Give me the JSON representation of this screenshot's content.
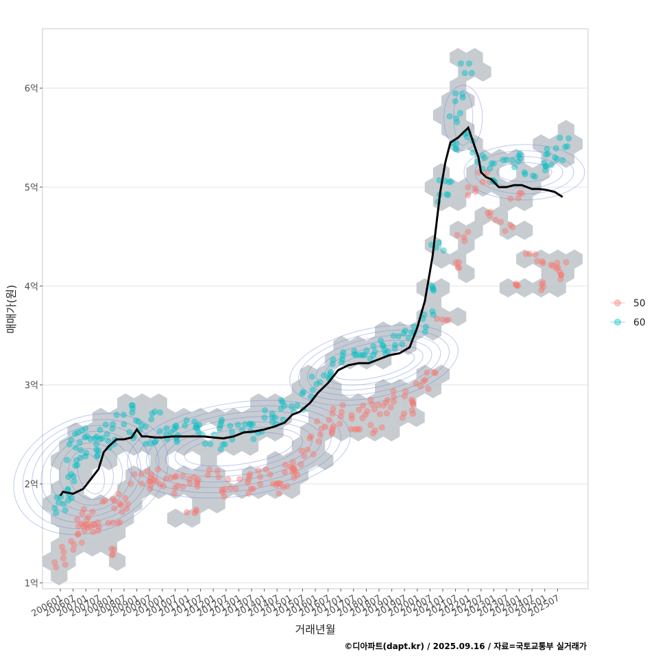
{
  "chart_data": {
    "type": "scatter",
    "xlabel": "거래년월",
    "ylabel": "매매가(원)",
    "caption": "©디아파트(dapt.kr) / 2025.09.16 / 자료=국토교통부 실거래가",
    "x_ticks": [
      "200601",
      "200607",
      "200701",
      "200707",
      "200801",
      "200807",
      "200901",
      "200907",
      "201001",
      "201007",
      "201101",
      "201107",
      "201201",
      "201207",
      "201301",
      "201307",
      "201401",
      "201407",
      "201501",
      "201507",
      "201601",
      "201607",
      "201701",
      "201707",
      "201801",
      "201807",
      "201901",
      "201907",
      "202001",
      "202007",
      "202101",
      "202107",
      "202201",
      "202207",
      "202301",
      "202307",
      "202401",
      "202407",
      "202501",
      "202507"
    ],
    "y_ticks": [
      {
        "value": 1,
        "label": "1억"
      },
      {
        "value": 2,
        "label": "2억"
      },
      {
        "value": 3,
        "label": "3억"
      },
      {
        "value": 4,
        "label": "4억"
      },
      {
        "value": 5,
        "label": "5억"
      },
      {
        "value": 6,
        "label": "6억"
      }
    ],
    "xlim": [
      2005.3,
      2026.7
    ],
    "ylim": [
      0.94,
      6.6
    ],
    "grid": true,
    "legend_position": "right",
    "colors": {
      "series_50": "#F8766D",
      "series_60": "#00BFC4",
      "trend": "#000000",
      "hex": "#b9bfc6",
      "density": "#6a86e0"
    },
    "series": [
      {
        "name": "50",
        "color": "#F8766D",
        "points": [
          [
            2006.0,
            1.2
          ],
          [
            2006.3,
            1.35
          ],
          [
            2006.6,
            1.45
          ],
          [
            2006.7,
            1.55
          ],
          [
            2006.9,
            1.6
          ],
          [
            2007.1,
            1.7
          ],
          [
            2007.3,
            1.6
          ],
          [
            2007.5,
            1.55
          ],
          [
            2007.9,
            1.8
          ],
          [
            2008.1,
            1.65
          ],
          [
            2008.2,
            1.3
          ],
          [
            2008.3,
            1.85
          ],
          [
            2008.5,
            1.75
          ],
          [
            2009.0,
            2.05
          ],
          [
            2009.3,
            1.98
          ],
          [
            2009.6,
            2.1
          ],
          [
            2009.9,
            2.0
          ],
          [
            2010.3,
            2.1
          ],
          [
            2010.7,
            1.95
          ],
          [
            2011.0,
            2.05
          ],
          [
            2011.2,
            1.75
          ],
          [
            2011.6,
            2.0
          ],
          [
            2012.0,
            2.1
          ],
          [
            2012.4,
            1.9
          ],
          [
            2012.8,
            2.0
          ],
          [
            2013.2,
            2.05
          ],
          [
            2013.6,
            1.95
          ],
          [
            2014.0,
            2.1
          ],
          [
            2014.4,
            2.05
          ],
          [
            2014.7,
            1.95
          ],
          [
            2014.9,
            2.15
          ],
          [
            2015.2,
            2.2
          ],
          [
            2015.4,
            2.1
          ],
          [
            2015.7,
            2.3
          ],
          [
            2016.0,
            2.45
          ],
          [
            2016.3,
            2.6
          ],
          [
            2016.6,
            2.55
          ],
          [
            2016.9,
            2.75
          ],
          [
            2017.2,
            2.65
          ],
          [
            2017.5,
            2.6
          ],
          [
            2017.8,
            2.7
          ],
          [
            2018.1,
            2.8
          ],
          [
            2018.4,
            2.55
          ],
          [
            2018.7,
            2.75
          ],
          [
            2019.0,
            2.8
          ],
          [
            2019.3,
            2.9
          ],
          [
            2019.6,
            2.7
          ],
          [
            2019.9,
            2.85
          ],
          [
            2020.2,
            3.0
          ],
          [
            2020.5,
            3.1
          ],
          [
            2021.0,
            3.7
          ],
          [
            2021.4,
            4.2
          ],
          [
            2021.8,
            4.5
          ],
          [
            2022.2,
            4.95
          ],
          [
            2022.6,
            5.1
          ],
          [
            2023.0,
            4.7
          ],
          [
            2023.5,
            4.6
          ],
          [
            2023.9,
            4.9
          ],
          [
            2024.1,
            4.05
          ],
          [
            2024.5,
            4.3
          ],
          [
            2024.9,
            4.0
          ],
          [
            2025.1,
            4.25
          ],
          [
            2025.4,
            4.1
          ],
          [
            2025.6,
            4.2
          ]
        ]
      },
      {
        "name": "60",
        "color": "#00BFC4",
        "points": [
          [
            2006.0,
            1.75
          ],
          [
            2006.1,
            1.85
          ],
          [
            2006.2,
            1.9
          ],
          [
            2006.3,
            2.05
          ],
          [
            2006.5,
            2.2
          ],
          [
            2006.6,
            2.4
          ],
          [
            2006.8,
            2.55
          ],
          [
            2007.0,
            2.3
          ],
          [
            2007.2,
            2.45
          ],
          [
            2007.4,
            2.5
          ],
          [
            2007.6,
            2.3
          ],
          [
            2007.8,
            2.55
          ],
          [
            2008.0,
            2.4
          ],
          [
            2008.3,
            2.65
          ],
          [
            2008.6,
            2.75
          ],
          [
            2008.9,
            2.5
          ],
          [
            2009.2,
            2.6
          ],
          [
            2009.5,
            2.45
          ],
          [
            2009.8,
            2.7
          ],
          [
            2010.1,
            2.5
          ],
          [
            2010.4,
            2.6
          ],
          [
            2010.8,
            2.45
          ],
          [
            2011.1,
            2.6
          ],
          [
            2011.4,
            2.55
          ],
          [
            2011.8,
            2.45
          ],
          [
            2012.1,
            2.6
          ],
          [
            2012.5,
            2.4
          ],
          [
            2012.9,
            2.55
          ],
          [
            2013.3,
            2.65
          ],
          [
            2013.7,
            2.5
          ],
          [
            2014.1,
            2.7
          ],
          [
            2014.5,
            2.65
          ],
          [
            2014.9,
            2.8
          ],
          [
            2015.3,
            2.75
          ],
          [
            2015.7,
            2.9
          ],
          [
            2016.1,
            3.05
          ],
          [
            2016.5,
            3.1
          ],
          [
            2016.9,
            3.25
          ],
          [
            2017.3,
            3.3
          ],
          [
            2017.7,
            3.35
          ],
          [
            2018.1,
            3.3
          ],
          [
            2018.5,
            3.4
          ],
          [
            2018.9,
            3.35
          ],
          [
            2019.3,
            3.45
          ],
          [
            2019.7,
            3.5
          ],
          [
            2020.1,
            3.55
          ],
          [
            2020.4,
            3.7
          ],
          [
            2020.7,
            4.0
          ],
          [
            2020.8,
            4.4
          ],
          [
            2021.0,
            4.9
          ],
          [
            2021.1,
            5.1
          ],
          [
            2021.3,
            5.4
          ],
          [
            2021.5,
            5.7
          ],
          [
            2021.7,
            5.9
          ],
          [
            2021.9,
            6.2
          ],
          [
            2022.1,
            5.5
          ],
          [
            2022.4,
            5.3
          ],
          [
            2022.8,
            5.2
          ],
          [
            2023.2,
            5.1
          ],
          [
            2023.6,
            5.25
          ],
          [
            2024.0,
            5.3
          ],
          [
            2024.4,
            5.15
          ],
          [
            2024.8,
            5.2
          ],
          [
            2025.2,
            5.35
          ],
          [
            2025.5,
            5.25
          ],
          [
            2025.7,
            5.45
          ]
        ]
      }
    ],
    "trend": {
      "x": [
        2006.0,
        2006.1,
        2006.5,
        2006.9,
        2007.2,
        2007.5,
        2007.7,
        2007.9,
        2008.2,
        2008.5,
        2008.8,
        2009.0,
        2009.2,
        2009.4,
        2009.7,
        2010.0,
        2010.4,
        2010.8,
        2011.2,
        2011.6,
        2012.0,
        2012.4,
        2012.8,
        2013.2,
        2013.6,
        2014.0,
        2014.4,
        2014.8,
        2015.1,
        2015.4,
        2015.8,
        2016.1,
        2016.5,
        2016.9,
        2017.3,
        2017.7,
        2018.1,
        2018.5,
        2018.9,
        2019.3,
        2019.7,
        2020.0,
        2020.3,
        2020.6,
        2020.9,
        2021.1,
        2021.3,
        2021.6,
        2021.8,
        2022.0,
        2022.2,
        2022.4,
        2022.5,
        2022.7,
        2022.9,
        2023.2,
        2023.5,
        2023.8,
        2024.1,
        2024.5,
        2024.8,
        2025.1,
        2025.4,
        2025.7
      ],
      "y": [
        1.88,
        1.92,
        1.9,
        1.95,
        2.05,
        2.15,
        2.32,
        2.38,
        2.45,
        2.45,
        2.47,
        2.55,
        2.48,
        2.48,
        2.47,
        2.47,
        2.48,
        2.48,
        2.48,
        2.48,
        2.47,
        2.46,
        2.48,
        2.52,
        2.53,
        2.55,
        2.58,
        2.62,
        2.7,
        2.73,
        2.82,
        2.92,
        3.02,
        3.15,
        3.2,
        3.22,
        3.22,
        3.26,
        3.3,
        3.32,
        3.38,
        3.58,
        3.85,
        4.3,
        4.95,
        5.25,
        5.45,
        5.5,
        5.55,
        5.6,
        5.45,
        5.3,
        5.15,
        5.1,
        5.08,
        5.0,
        5.0,
        5.02,
        5.02,
        4.98,
        4.98,
        4.97,
        4.95,
        4.9
      ]
    }
  }
}
